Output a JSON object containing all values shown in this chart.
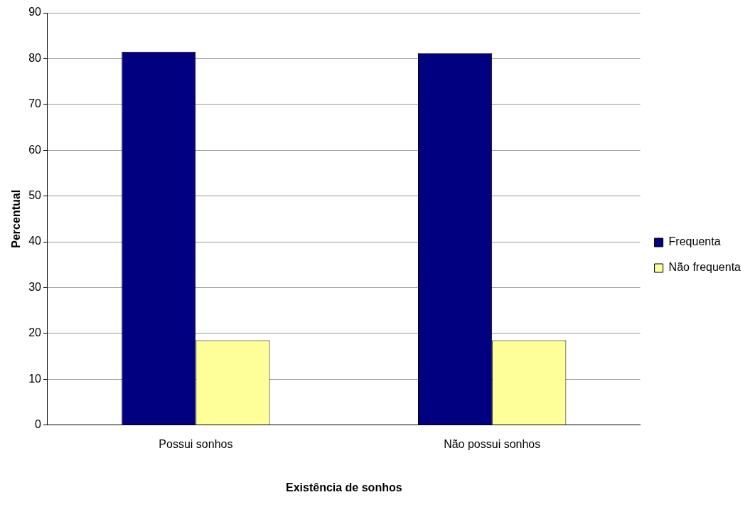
{
  "chart_data": {
    "type": "bar",
    "xlabel": "Existência de sonhos",
    "ylabel": "Percentual",
    "categories": [
      "Possui sonhos",
      "Não possui sonhos"
    ],
    "series": [
      {
        "name": "Frequenta",
        "color": "#000080",
        "values": [
          81.5,
          81.2
        ]
      },
      {
        "name": "Não frequenta",
        "color": "#ffff99",
        "values": [
          18.5,
          18.5
        ]
      }
    ],
    "ylim": [
      0,
      90
    ],
    "yticks": [
      0,
      10,
      20,
      30,
      40,
      50,
      60,
      70,
      80,
      90
    ],
    "grid": "y",
    "legend": "right"
  }
}
